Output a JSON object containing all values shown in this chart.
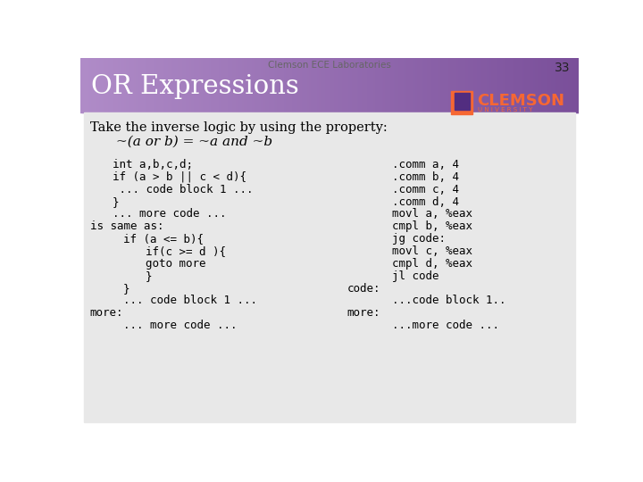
{
  "header_text": "Clemson ECE Laboratories",
  "slide_number": "33",
  "title": "OR Expressions",
  "bg_color": "#ffffff",
  "header_gradient_left": "#b08cc8",
  "header_gradient_right": "#7a4f9a",
  "title_color": "#ffffff",
  "header_text_color": "#666666",
  "body_bg": "#e8e8e8",
  "body_text_color": "#000000",
  "intro_line1": "Take the inverse logic by using the property:",
  "intro_line2": "~(a or b) = ~a and ~b",
  "left_code": [
    {
      "indent": 2,
      "text": "int a,b,c,d;"
    },
    {
      "indent": 2,
      "text": "if (a > b || c < d){"
    },
    {
      "indent": 2,
      "text": " ... code block 1 ..."
    },
    {
      "indent": 2,
      "text": "}"
    },
    {
      "indent": 2,
      "text": "... more code ..."
    },
    {
      "indent": 0,
      "text": "is same as:"
    },
    {
      "indent": 3,
      "text": "if (a <= b){"
    },
    {
      "indent": 5,
      "text": "if(c >= d ){"
    },
    {
      "indent": 5,
      "text": "goto more"
    },
    {
      "indent": 5,
      "text": "}"
    },
    {
      "indent": 3,
      "text": "}"
    },
    {
      "indent": 3,
      "text": "... code block 1 ..."
    },
    {
      "indent": 0,
      "text": "more:"
    },
    {
      "indent": 3,
      "text": "... more code ..."
    }
  ],
  "right_code": [
    ".comm a, 4",
    ".comm b, 4",
    ".comm c, 4",
    ".comm d, 4",
    "movl a, %eax",
    "cmpl b, %eax",
    "jg code:",
    "movl c, %eax",
    "cmpl d, %eax",
    "jl code",
    "",
    "...code block 1..",
    "",
    "...more code ..."
  ],
  "clemson_orange": "#F66733",
  "clemson_purple": "#522D80"
}
